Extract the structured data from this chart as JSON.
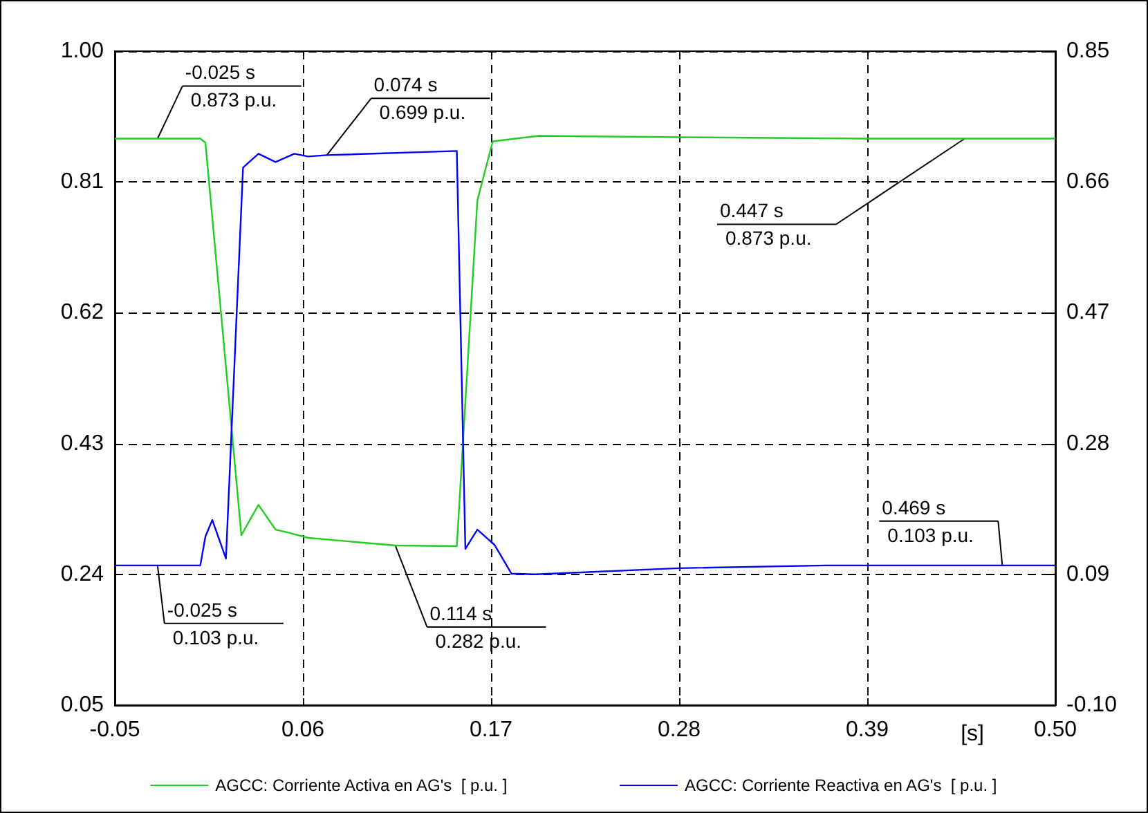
{
  "chart_data": {
    "type": "line",
    "x": [
      -0.05,
      -0.025,
      0.0,
      0.003,
      0.024,
      0.034,
      0.044,
      0.051,
      0.063,
      0.114,
      0.15,
      0.162,
      0.171,
      0.198,
      0.28,
      0.39,
      0.447,
      0.5
    ],
    "series": [
      {
        "name": "AGCC: Corriente Activa en AG's  [ p.u. ]",
        "color": "#22cc22",
        "values": [
          0.873,
          0.873,
          0.873,
          0.867,
          0.297,
          0.341,
          0.305,
          0.301,
          0.293,
          0.282,
          0.281,
          0.783,
          0.869,
          0.877,
          0.875,
          0.873,
          0.873,
          0.873
        ]
      },
      {
        "name": "AGCC: Corriente Reactiva en AG's  [ p.u. ]",
        "color": "#0000ff",
        "axis": "y2",
        "x": [
          -0.05,
          -0.025,
          0.0,
          0.003,
          0.007,
          0.015,
          0.025,
          0.034,
          0.044,
          0.055,
          0.063,
          0.074,
          0.15,
          0.155,
          0.162,
          0.172,
          0.182,
          0.196,
          0.28,
          0.366,
          0.469,
          0.5
        ],
        "values": [
          0.103,
          0.103,
          0.103,
          0.145,
          0.169,
          0.113,
          0.681,
          0.701,
          0.689,
          0.701,
          0.697,
          0.699,
          0.705,
          0.127,
          0.155,
          0.133,
          0.091,
          0.09,
          0.099,
          0.103,
          0.103,
          0.103
        ]
      }
    ],
    "xlabel": "[s]",
    "xlim": [
      -0.05,
      0.5
    ],
    "xticks": [
      -0.05,
      0.06,
      0.17,
      0.28,
      0.39,
      {
        "value": 0.5,
        "label": "0.50"
      }
    ],
    "ylim": [
      0.05,
      1.0
    ],
    "yticks": [
      0.05,
      0.24,
      0.43,
      0.62,
      0.81,
      {
        "value": 1.0,
        "label": "1.00"
      }
    ],
    "y2lim": [
      -0.1,
      0.85
    ],
    "y2ticks": [
      {
        "value": -0.1,
        "label": "-0.10"
      },
      0.09,
      0.28,
      0.47,
      0.66,
      0.85
    ],
    "grid": true,
    "legend": "bottom",
    "marker": "none",
    "line_style": "solid",
    "annotations": [
      {
        "text": "-0.025 s\n0.873 p.u.",
        "x": -0.025,
        "y": 0.873
      },
      {
        "text": "0.074 s\n0.699 p.u.",
        "x": 0.074,
        "y": 0.849
      },
      {
        "text": "0.447 s\n0.873 p.u.",
        "x": 0.447,
        "y": 0.873
      },
      {
        "text": "0.469 s\n0.103 p.u.",
        "x": 0.469,
        "y": 0.253
      },
      {
        "text": "-0.025 s\n0.103 p.u.",
        "x": -0.025,
        "y": 0.253
      },
      {
        "text": "0.114 s\n0.282 p.u.",
        "x": 0.114,
        "y": 0.282
      }
    ]
  }
}
